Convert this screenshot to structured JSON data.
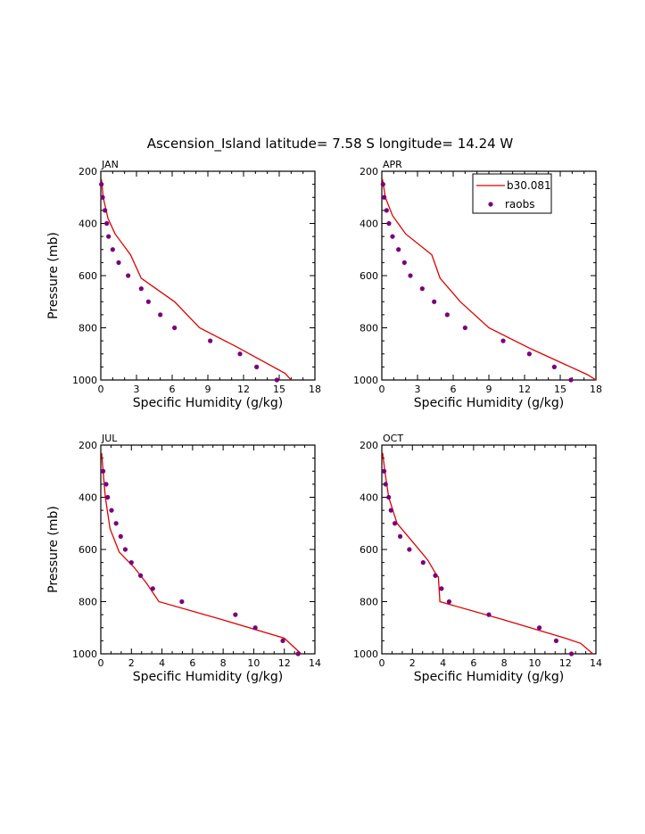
{
  "title": "Ascension_Island  latitude= 7.58 S longitude= 14.24 W",
  "colors": {
    "model": "#e00000",
    "obs": "#7a007a",
    "axis": "#000000"
  },
  "legend": {
    "model_label": "b30.081",
    "obs_label": "raobs",
    "placement": "top-right of APR panel"
  },
  "chart_data": [
    {
      "type": "line",
      "panel": "JAN",
      "xlabel": "Specific Humidity (g/kg)",
      "ylabel": "Pressure (mb)",
      "xlim": [
        0,
        18
      ],
      "ylim": [
        1000,
        200
      ],
      "xticks": [
        0,
        3,
        6,
        9,
        12,
        15,
        18
      ],
      "yticks": [
        200,
        400,
        600,
        800,
        1000
      ],
      "series": [
        {
          "name": "b30.081",
          "x": [
            0.05,
            0.2,
            0.6,
            1.2,
            2.5,
            3.4,
            6.2,
            8.3,
            11.5,
            15.5,
            16.0
          ],
          "y": [
            230,
            300,
            380,
            440,
            520,
            610,
            700,
            800,
            875,
            975,
            1000
          ]
        },
        {
          "name": "raobs",
          "x": [
            0.05,
            0.15,
            0.35,
            0.5,
            0.65,
            1.0,
            1.5,
            2.3,
            3.4,
            4.0,
            5.0,
            6.2,
            9.2,
            11.7,
            13.1,
            14.8
          ],
          "y": [
            250,
            300,
            350,
            400,
            450,
            500,
            550,
            600,
            650,
            700,
            750,
            800,
            850,
            900,
            950,
            1000
          ]
        }
      ]
    },
    {
      "type": "line",
      "panel": "APR",
      "xlabel": "Specific Humidity (g/kg)",
      "ylabel": "",
      "xlim": [
        0,
        18
      ],
      "ylim": [
        1000,
        200
      ],
      "xticks": [
        0,
        3,
        6,
        9,
        12,
        15,
        18
      ],
      "yticks": [
        200,
        400,
        600,
        800,
        1000
      ],
      "series": [
        {
          "name": "b30.081",
          "x": [
            0.05,
            0.3,
            0.9,
            2.0,
            4.2,
            4.9,
            6.6,
            9.0,
            12.5,
            17.3,
            18.0
          ],
          "y": [
            230,
            300,
            370,
            440,
            520,
            610,
            700,
            800,
            880,
            980,
            1000
          ]
        },
        {
          "name": "raobs",
          "x": [
            0.1,
            0.2,
            0.4,
            0.6,
            0.9,
            1.4,
            1.9,
            2.4,
            3.4,
            4.4,
            5.5,
            7.0,
            10.2,
            12.4,
            14.5,
            15.9
          ],
          "y": [
            250,
            300,
            350,
            400,
            450,
            500,
            550,
            600,
            650,
            700,
            750,
            800,
            850,
            900,
            950,
            1000
          ]
        }
      ]
    },
    {
      "type": "line",
      "panel": "JUL",
      "xlabel": "Specific Humidity (g/kg)",
      "ylabel": "Pressure (mb)",
      "xlim": [
        0,
        14
      ],
      "ylim": [
        1000,
        200
      ],
      "xticks": [
        0,
        2,
        4,
        6,
        8,
        10,
        12,
        14
      ],
      "yticks": [
        200,
        400,
        600,
        800,
        1000
      ],
      "series": [
        {
          "name": "b30.081",
          "x": [
            0.05,
            0.15,
            0.3,
            0.6,
            1.2,
            2.2,
            3.0,
            3.8,
            8.0,
            12.0,
            13.1
          ],
          "y": [
            230,
            300,
            400,
            520,
            610,
            670,
            730,
            800,
            870,
            940,
            1000
          ]
        },
        {
          "name": "raobs",
          "x": [
            0.15,
            0.35,
            0.45,
            0.7,
            1.0,
            1.3,
            1.6,
            2.0,
            2.6,
            3.4,
            5.3,
            8.8,
            10.1,
            11.9,
            12.9
          ],
          "y": [
            300,
            350,
            400,
            450,
            500,
            550,
            600,
            650,
            700,
            750,
            800,
            850,
            900,
            950,
            1000
          ]
        }
      ]
    },
    {
      "type": "line",
      "panel": "OCT",
      "xlabel": "Specific Humidity (g/kg)",
      "ylabel": "",
      "xlim": [
        0,
        14
      ],
      "ylim": [
        1000,
        200
      ],
      "xticks": [
        0,
        2,
        4,
        6,
        8,
        10,
        12,
        14
      ],
      "yticks": [
        200,
        400,
        600,
        800,
        1000
      ],
      "series": [
        {
          "name": "b30.081",
          "x": [
            0.05,
            0.2,
            0.45,
            1.0,
            2.0,
            3.0,
            3.6,
            3.7,
            3.8,
            8.0,
            12.0,
            13.0,
            13.8
          ],
          "y": [
            230,
            300,
            400,
            500,
            570,
            640,
            700,
            705,
            800,
            870,
            940,
            960,
            1000
          ]
        },
        {
          "name": "raobs",
          "x": [
            0.15,
            0.25,
            0.45,
            0.6,
            0.85,
            1.2,
            1.8,
            2.7,
            3.5,
            3.9,
            4.4,
            7.0,
            10.3,
            11.4,
            12.4
          ],
          "y": [
            300,
            350,
            400,
            450,
            500,
            550,
            600,
            650,
            700,
            750,
            800,
            850,
            900,
            950,
            1000
          ]
        }
      ]
    }
  ]
}
